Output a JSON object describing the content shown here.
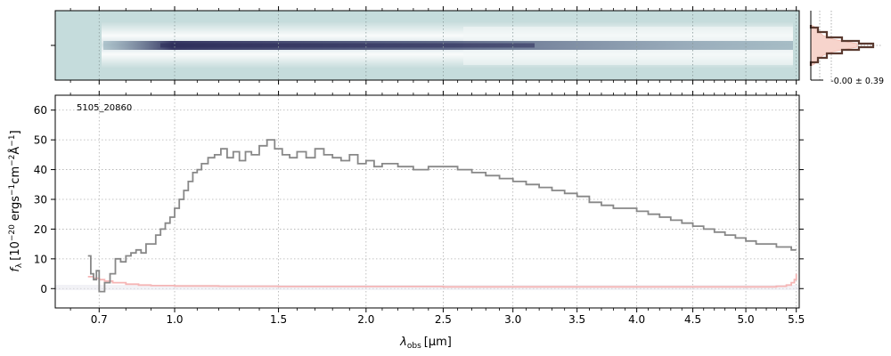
{
  "chart_data": [
    {
      "panel": "2d-spectrum",
      "type": "heatmap",
      "description_colors": {
        "background": "#c5dcdc",
        "trace": "#3c3c64",
        "halo": "#ffffff"
      },
      "x_range_um": [
        0.55,
        5.53
      ],
      "trace_x_range_um": [
        0.66,
        5.5
      ],
      "grid": true
    },
    {
      "panel": "profile",
      "type": "line",
      "annotation": "-0.00 ± 0.39",
      "colors": {
        "profile": "#5a3a30",
        "model_fill": "#f7d4cc"
      }
    },
    {
      "panel": "1d-spectrum",
      "type": "line",
      "label": "5105_20860",
      "xlabel_main": "λ",
      "xlabel_sub": "obs",
      "xlabel_unit": "[μm]",
      "ylabel_main": "f",
      "ylabel_sub": "λ",
      "ylabel_unit_a": "[10",
      "ylabel_exp_a": "−20",
      "ylabel_unit_b": "ergs",
      "ylabel_exp_b": "−1",
      "ylabel_unit_c": "cm",
      "ylabel_exp_c": "−2",
      "ylabel_unit_d": "Å",
      "ylabel_exp_d": "−1",
      "ylabel_unit_e": "]",
      "xlim": [
        0.55,
        5.53
      ],
      "ylim": [
        -6.5,
        65
      ],
      "xticks": [
        0.7,
        1.0,
        1.5,
        2.0,
        2.5,
        3.0,
        3.5,
        4.0,
        4.5,
        5.0,
        5.5
      ],
      "xtick_labels": [
        "0.7",
        "1.0",
        "1.5",
        "2.0",
        "2.5",
        "3.0",
        "3.5",
        "4.0",
        "4.5",
        "5.0",
        "5.5"
      ],
      "yticks": [
        0,
        10,
        20,
        30,
        40,
        50,
        60
      ],
      "ytick_labels": [
        "0",
        "10",
        "20",
        "30",
        "40",
        "50",
        "60"
      ],
      "grid": true,
      "series": [
        {
          "role": "flux",
          "color": "#888888",
          "x": [
            0.66,
            0.67,
            0.68,
            0.69,
            0.7,
            0.72,
            0.74,
            0.76,
            0.78,
            0.8,
            0.82,
            0.84,
            0.86,
            0.88,
            0.9,
            0.92,
            0.94,
            0.96,
            0.98,
            1.0,
            1.02,
            1.04,
            1.06,
            1.08,
            1.1,
            1.12,
            1.15,
            1.18,
            1.21,
            1.24,
            1.27,
            1.3,
            1.33,
            1.36,
            1.4,
            1.44,
            1.48,
            1.52,
            1.56,
            1.6,
            1.65,
            1.7,
            1.75,
            1.8,
            1.85,
            1.9,
            1.95,
            2.0,
            2.05,
            2.1,
            2.2,
            2.3,
            2.4,
            2.5,
            2.6,
            2.7,
            2.8,
            2.9,
            3.0,
            3.1,
            3.2,
            3.3,
            3.4,
            3.5,
            3.6,
            3.7,
            3.8,
            3.9,
            4.0,
            4.1,
            4.2,
            4.3,
            4.4,
            4.5,
            4.6,
            4.7,
            4.8,
            4.9,
            5.0,
            5.1,
            5.2,
            5.3,
            5.4,
            5.45,
            5.5
          ],
          "y": [
            11,
            5,
            3,
            6,
            -1,
            2,
            5,
            10,
            9,
            11,
            12,
            13,
            12,
            15,
            15,
            18,
            20,
            22,
            24,
            27,
            30,
            33,
            36,
            39,
            40,
            42,
            44,
            45,
            47,
            44,
            46,
            43,
            46,
            45,
            48,
            50,
            47,
            45,
            44,
            46,
            44,
            47,
            45,
            44,
            43,
            45,
            42,
            43,
            41,
            42,
            41,
            40,
            41,
            41,
            40,
            39,
            38,
            37,
            36,
            35,
            34,
            33,
            32,
            31,
            29,
            28,
            27,
            27,
            26,
            25,
            24,
            23,
            22,
            21,
            20,
            19,
            18,
            17,
            16,
            15,
            15,
            14,
            14,
            13,
            13
          ]
        },
        {
          "role": "uncertainty",
          "color": "#f5b5b5",
          "x": [
            0.66,
            0.68,
            0.7,
            0.72,
            0.75,
            0.8,
            0.85,
            0.9,
            1.0,
            1.2,
            1.5,
            2.0,
            2.5,
            3.0,
            3.5,
            4.0,
            4.5,
            5.0,
            5.3,
            5.4,
            5.45,
            5.48,
            5.5
          ],
          "y": [
            4,
            3.5,
            3,
            2.5,
            2,
            1.5,
            1.2,
            1.0,
            0.9,
            0.8,
            0.7,
            0.7,
            0.6,
            0.6,
            0.6,
            0.6,
            0.6,
            0.6,
            0.8,
            1.2,
            2,
            3,
            5
          ]
        }
      ]
    }
  ]
}
